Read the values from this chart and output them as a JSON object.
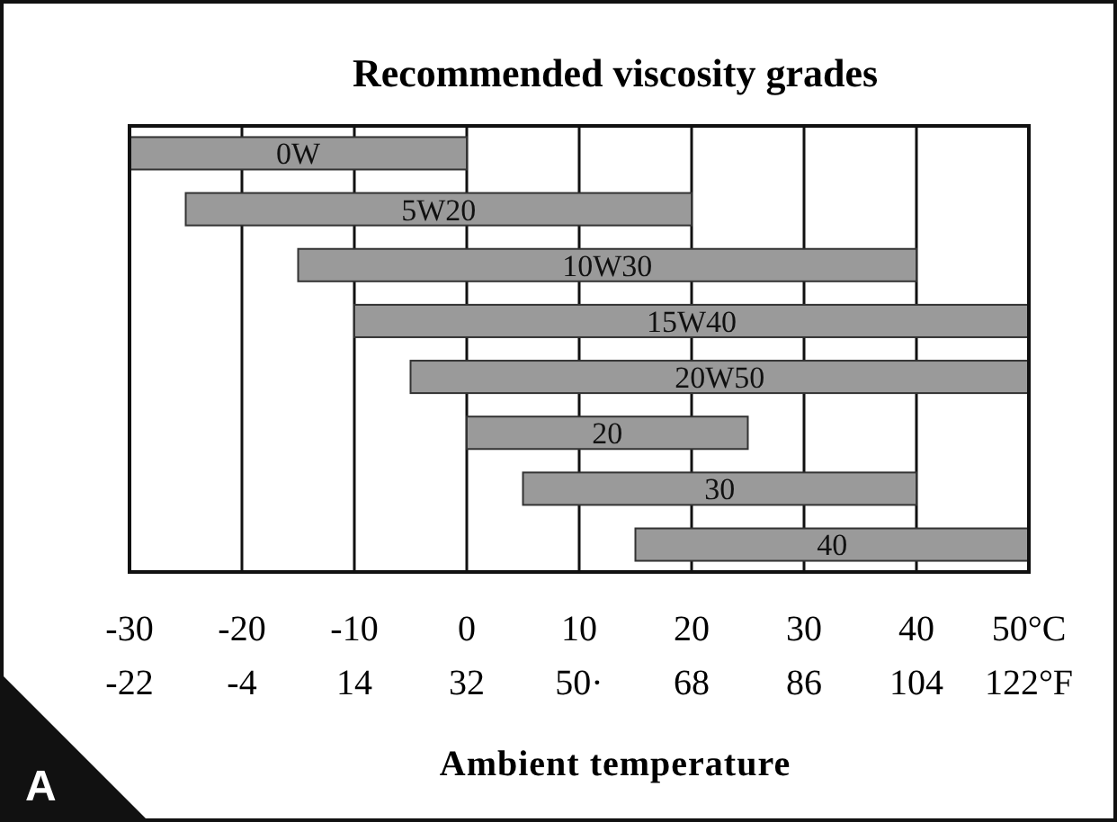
{
  "chart_data": {
    "type": "bar",
    "orientation": "horizontal",
    "title": "Recommended viscosity grades",
    "xlabel": "Ambient temperature",
    "categories": [
      "0W",
      "5W20",
      "10W30",
      "15W40",
      "20W50",
      "20",
      "30",
      "40"
    ],
    "base": [
      -30,
      -25,
      -15,
      -10,
      -5,
      0,
      5,
      15
    ],
    "values": [
      30,
      45,
      55,
      60,
      55,
      25,
      35,
      35
    ],
    "color": "#9a9a9a",
    "xlim": [
      -30,
      50
    ],
    "xticks": [
      -30,
      -20,
      -10,
      0,
      10,
      20,
      30,
      40,
      {
        "value": 50,
        "label": "50°C"
      }
    ],
    "x2lim": [
      -22,
      122
    ],
    "x2ticks": [
      -22,
      -4,
      14,
      32,
      {
        "value": 50,
        "label": "50·"
      },
      68,
      86,
      104,
      {
        "value": 122,
        "label": "122°F"
      }
    ],
    "grid": "x",
    "tick_labels": "x",
    "annotations": [
      "A"
    ]
  }
}
